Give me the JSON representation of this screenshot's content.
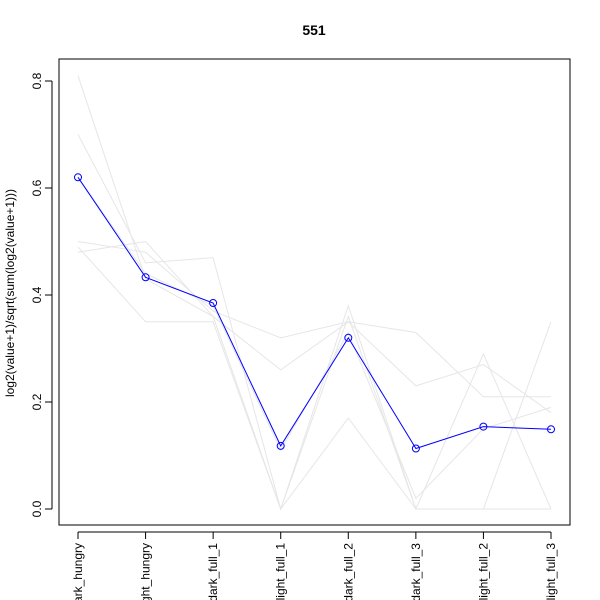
{
  "chart_data": {
    "type": "line",
    "title": "551",
    "xlabel": "",
    "ylabel": "log2(value+1)/sqrt(sum(log2(value+1)))",
    "categories": [
      "dark_hungry",
      "light_hungry",
      "dark_full_1",
      "light_full_1",
      "dark_full_2",
      "dark_full_3",
      "light_full_2",
      "light_full_3"
    ],
    "tick_labels_visible": [
      "ark_hungry",
      "ght_hungry",
      "dark_full_1",
      "light_full_1",
      "dark_full_2",
      "dark_full_3",
      "light_full_2",
      "light_full_3"
    ],
    "ylim": [
      0,
      0.8
    ],
    "yticks": [
      0.0,
      0.2,
      0.4,
      0.6,
      0.8
    ],
    "ytick_labels": [
      "0.0",
      "0.2",
      "0.4",
      "0.6",
      "0.8"
    ],
    "grid": false,
    "legend": "none",
    "series": [
      {
        "highlight": true,
        "color": "#0000ff",
        "markers": "open-circle",
        "values": [
          0.62,
          0.433,
          0.385,
          0.118,
          0.32,
          0.113,
          0.154,
          0.149
        ]
      },
      {
        "highlight": false,
        "color": "#e6e6e6",
        "values": [
          0.81,
          0.43,
          0.36,
          0.0,
          0.38,
          0.0,
          0.29,
          0.0
        ]
      },
      {
        "highlight": false,
        "color": "#e6e6e6",
        "values": [
          0.7,
          0.46,
          0.47,
          0.0,
          0.17,
          0.0,
          0.0,
          0.35
        ]
      },
      {
        "highlight": false,
        "color": "#e6e6e6",
        "values": [
          0.49,
          0.35,
          0.35,
          0.0,
          0.36,
          0.0,
          0.0,
          0.0
        ]
      },
      {
        "highlight": false,
        "color": "#e6e6e6",
        "values": [
          0.48,
          0.5,
          0.36,
          0.26,
          0.35,
          0.23,
          0.27,
          0.18
        ]
      },
      {
        "highlight": false,
        "color": "#e6e6e6",
        "values": [
          0.5,
          0.48,
          0.37,
          0.32,
          0.35,
          0.33,
          0.21,
          0.21
        ]
      },
      {
        "highlight": false,
        "color": "#e6e6e6",
        "values": [
          0.62,
          0.44,
          0.38,
          0.11,
          0.33,
          0.02,
          0.15,
          0.19
        ]
      }
    ]
  }
}
